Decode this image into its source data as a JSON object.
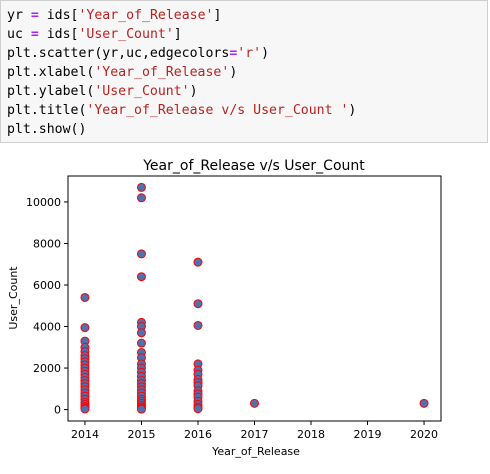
{
  "code": {
    "lines": [
      [
        {
          "t": "yr ",
          "c": ""
        },
        {
          "t": "=",
          "c": "op"
        },
        {
          "t": " ids[",
          "c": ""
        },
        {
          "t": "'Year_of_Release'",
          "c": "str"
        },
        {
          "t": "]",
          "c": ""
        }
      ],
      [
        {
          "t": "uc ",
          "c": ""
        },
        {
          "t": "=",
          "c": "op"
        },
        {
          "t": " ids[",
          "c": ""
        },
        {
          "t": "'User_Count'",
          "c": "str"
        },
        {
          "t": "]",
          "c": ""
        }
      ],
      [
        {
          "t": "plt.scatter(yr,uc,edgecolors",
          "c": ""
        },
        {
          "t": "=",
          "c": "op"
        },
        {
          "t": "'r'",
          "c": "str"
        },
        {
          "t": ")",
          "c": ""
        }
      ],
      [
        {
          "t": "plt.xlabel(",
          "c": ""
        },
        {
          "t": "'Year_of_Release'",
          "c": "str"
        },
        {
          "t": ")",
          "c": ""
        }
      ],
      [
        {
          "t": "plt.ylabel(",
          "c": ""
        },
        {
          "t": "'User_Count'",
          "c": "str"
        },
        {
          "t": ")",
          "c": ""
        }
      ],
      [
        {
          "t": "plt.title(",
          "c": ""
        },
        {
          "t": "'Year_of_Release v/s User_Count '",
          "c": "str"
        },
        {
          "t": ")",
          "c": ""
        }
      ],
      [
        {
          "t": "plt.show()",
          "c": ""
        }
      ]
    ]
  },
  "colors": {
    "marker_fill": "#4c72b0",
    "marker_edge": "#ff0000"
  },
  "chart_data": {
    "type": "scatter",
    "title": "Year_of_Release v/s User_Count",
    "xlabel": "Year_of_Release",
    "ylabel": "User_Count",
    "xlim": [
      2013.7,
      2020.3
    ],
    "ylim": [
      -550,
      11250
    ],
    "xticks": [
      2014,
      2015,
      2016,
      2017,
      2018,
      2019,
      2020
    ],
    "yticks": [
      0,
      2000,
      4000,
      6000,
      8000,
      10000
    ],
    "grid": false,
    "points": [
      [
        2014,
        5400
      ],
      [
        2014,
        3950
      ],
      [
        2014,
        3300
      ],
      [
        2014,
        3000
      ],
      [
        2014,
        2800
      ],
      [
        2014,
        2600
      ],
      [
        2014,
        2450
      ],
      [
        2014,
        2300
      ],
      [
        2014,
        2150
      ],
      [
        2014,
        2000
      ],
      [
        2014,
        1850
      ],
      [
        2014,
        1700
      ],
      [
        2014,
        1550
      ],
      [
        2014,
        1400
      ],
      [
        2014,
        1250
      ],
      [
        2014,
        1100
      ],
      [
        2014,
        950
      ],
      [
        2014,
        800
      ],
      [
        2014,
        650
      ],
      [
        2014,
        500
      ],
      [
        2014,
        350
      ],
      [
        2014,
        250
      ],
      [
        2014,
        150
      ],
      [
        2014,
        80
      ],
      [
        2014,
        30
      ],
      [
        2015,
        10700
      ],
      [
        2015,
        10200
      ],
      [
        2015,
        7500
      ],
      [
        2015,
        6400
      ],
      [
        2015,
        4200
      ],
      [
        2015,
        4000
      ],
      [
        2015,
        3700
      ],
      [
        2015,
        3200
      ],
      [
        2015,
        2750
      ],
      [
        2015,
        2500
      ],
      [
        2015,
        2200
      ],
      [
        2015,
        2000
      ],
      [
        2015,
        1800
      ],
      [
        2015,
        1600
      ],
      [
        2015,
        1400
      ],
      [
        2015,
        1250
      ],
      [
        2015,
        1100
      ],
      [
        2015,
        950
      ],
      [
        2015,
        800
      ],
      [
        2015,
        650
      ],
      [
        2015,
        500
      ],
      [
        2015,
        400
      ],
      [
        2015,
        300
      ],
      [
        2015,
        200
      ],
      [
        2015,
        120
      ],
      [
        2015,
        60
      ],
      [
        2015,
        20
      ],
      [
        2016,
        7100
      ],
      [
        2016,
        5100
      ],
      [
        2016,
        4050
      ],
      [
        2016,
        2200
      ],
      [
        2016,
        1900
      ],
      [
        2016,
        1700
      ],
      [
        2016,
        1450
      ],
      [
        2016,
        1300
      ],
      [
        2016,
        1150
      ],
      [
        2016,
        900
      ],
      [
        2016,
        750
      ],
      [
        2016,
        600
      ],
      [
        2016,
        400
      ],
      [
        2016,
        250
      ],
      [
        2016,
        120
      ],
      [
        2016,
        40
      ],
      [
        2017,
        300
      ],
      [
        2020,
        300
      ]
    ]
  }
}
